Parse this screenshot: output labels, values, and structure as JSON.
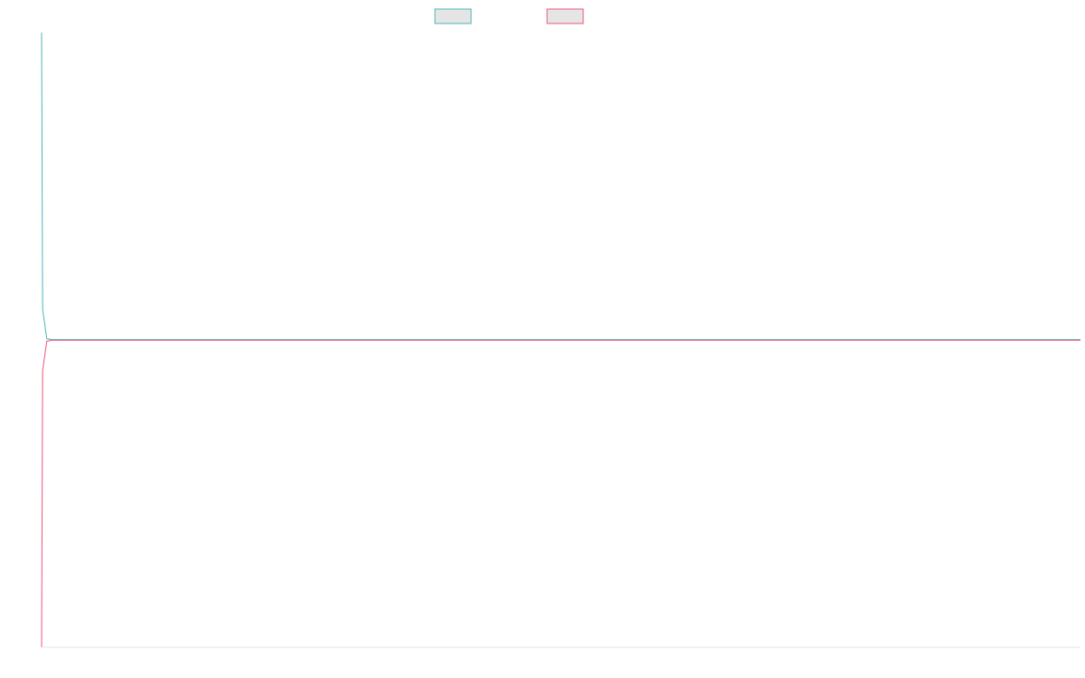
{
  "chart_data": {
    "type": "line",
    "title": "",
    "xlabel": "",
    "ylabel": "",
    "grid": false,
    "legend_position": "top-center",
    "series": [
      {
        "name": "",
        "color": "#4bb6b6",
        "x": [
          0,
          0.1,
          0.5,
          1
        ],
        "y": [
          1,
          0.1,
          0.004,
          0.001
        ]
      },
      {
        "name": "",
        "color": "#f0547a",
        "x": [
          0,
          0.1,
          0.5,
          1
        ],
        "y": [
          -1,
          -0.1,
          -0.004,
          -0.001
        ]
      }
    ],
    "xlim": [
      0,
      100
    ],
    "ylim": [
      -1,
      1
    ]
  }
}
